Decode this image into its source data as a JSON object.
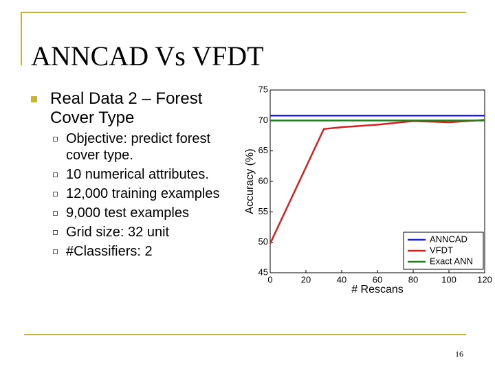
{
  "slide": {
    "title": "ANNCAD Vs VFDT",
    "bullet": "Real Data 2 – Forest Cover Type",
    "sub_bullets": [
      "Objective: predict forest cover type.",
      "10 numerical attributes.",
      "12,000 training examples",
      "9,000 test examples",
      "Grid size: 32 unit",
      "#Classifiers: 2"
    ],
    "page_number": "16"
  },
  "chart_data": {
    "type": "line",
    "x_label": "# Rescans",
    "y_label": "Accuracy (%)",
    "xlim": [
      0,
      120
    ],
    "xticks": [
      0,
      20,
      40,
      60,
      80,
      100,
      120
    ],
    "ylim": [
      45,
      75
    ],
    "yticks": [
      45,
      50,
      55,
      60,
      65,
      70,
      75
    ],
    "legend": "lower right",
    "series": [
      {
        "name": "ANNCAD",
        "color": "#1f1fd8",
        "x": [
          0,
          120
        ],
        "values": [
          70.8,
          70.8
        ]
      },
      {
        "name": "VFDT",
        "color": "#d81f1f",
        "x": [
          0,
          30,
          40,
          60,
          80,
          100,
          120
        ],
        "values": [
          49.8,
          68.6,
          68.9,
          69.3,
          69.9,
          69.7,
          70.1
        ]
      },
      {
        "name": "Exact ANN",
        "color": "#1f7f1f",
        "x": [
          0,
          120
        ],
        "values": [
          70.0,
          70.0
        ]
      }
    ]
  }
}
